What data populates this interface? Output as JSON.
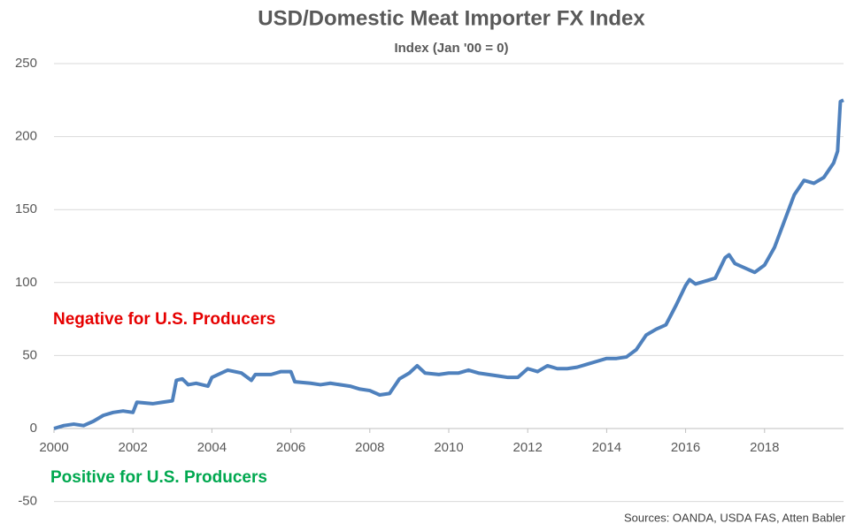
{
  "chart_data": {
    "type": "line",
    "title": "USD/Domestic Meat Importer FX Index",
    "subtitle": "Index (Jan '00 = 0)",
    "source": "Sources: OANDA, USDA FAS, Atten Babler",
    "annotations": [
      {
        "text": "Negative for U.S. Producers",
        "color": "#e60000"
      },
      {
        "text": "Positive for U.S. Producers",
        "color": "#00a84f"
      }
    ],
    "x": [
      2000.0,
      2000.25,
      2000.5,
      2000.75,
      2001.0,
      2001.25,
      2001.5,
      2001.75,
      2002.0,
      2002.1,
      2002.5,
      2002.75,
      2003.0,
      2003.1,
      2003.25,
      2003.4,
      2003.6,
      2003.9,
      2004.0,
      2004.4,
      2004.75,
      2005.0,
      2005.1,
      2005.5,
      2005.75,
      2006.0,
      2006.1,
      2006.5,
      2006.75,
      2007.0,
      2007.5,
      2007.75,
      2008.0,
      2008.25,
      2008.5,
      2008.75,
      2009.0,
      2009.2,
      2009.4,
      2009.75,
      2010.0,
      2010.25,
      2010.5,
      2010.75,
      2011.0,
      2011.25,
      2011.5,
      2011.75,
      2012.0,
      2012.25,
      2012.5,
      2012.75,
      2013.0,
      2013.25,
      2013.5,
      2013.75,
      2014.0,
      2014.25,
      2014.5,
      2014.75,
      2015.0,
      2015.25,
      2015.5,
      2015.75,
      2016.0,
      2016.1,
      2016.25,
      2016.5,
      2016.75,
      2017.0,
      2017.1,
      2017.25,
      2017.5,
      2017.75,
      2018.0,
      2018.25,
      2018.5,
      2018.75,
      2019.0,
      2019.25,
      2019.5,
      2019.75,
      2019.85,
      2019.92,
      2020.0
    ],
    "series": [
      {
        "name": "USD/Domestic Meat Importer FX Index",
        "color": "#4f81bd",
        "values": [
          0,
          2,
          3,
          2,
          5,
          9,
          11,
          12,
          11,
          18,
          17,
          18,
          19,
          33,
          34,
          30,
          31,
          29,
          35,
          40,
          38,
          33,
          37,
          37,
          39,
          39,
          32,
          31,
          30,
          31,
          29,
          27,
          26,
          23,
          24,
          34,
          38,
          43,
          38,
          37,
          38,
          38,
          40,
          38,
          37,
          36,
          35,
          35,
          41,
          39,
          43,
          41,
          41,
          42,
          44,
          46,
          48,
          48,
          49,
          54,
          64,
          68,
          71,
          84,
          98,
          102,
          99,
          101,
          103,
          117,
          119,
          113,
          110,
          107,
          112,
          124,
          142,
          160,
          170,
          168,
          172,
          182,
          190,
          224,
          225
        ]
      }
    ],
    "xlim": [
      2000,
      2020
    ],
    "xticks": [
      2000,
      2002,
      2004,
      2006,
      2008,
      2010,
      2012,
      2014,
      2016,
      2018
    ],
    "ylim": [
      -50,
      250
    ],
    "yticks": [
      -50,
      0,
      50,
      100,
      150,
      200,
      250
    ],
    "grid": true
  }
}
